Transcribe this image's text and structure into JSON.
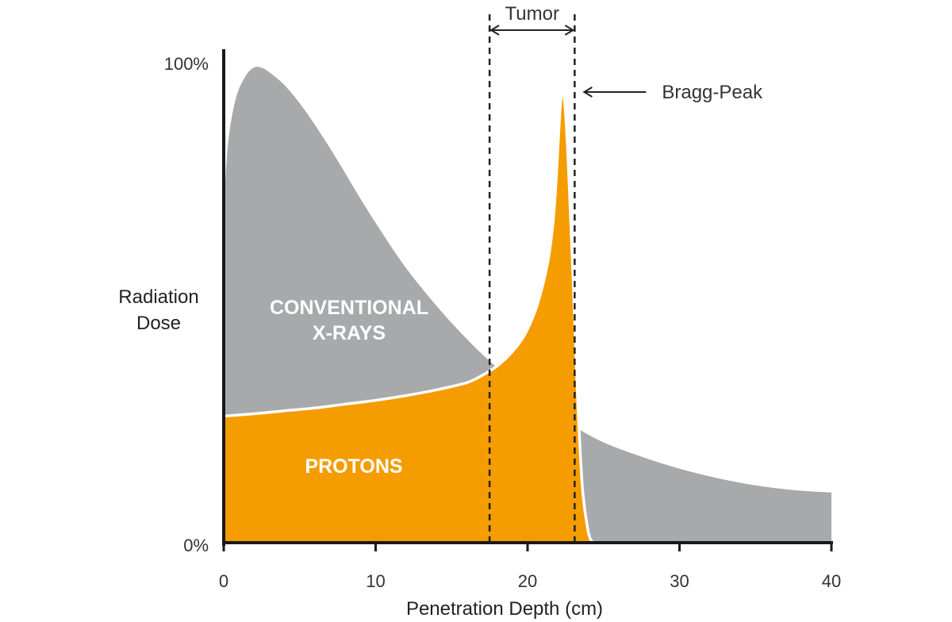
{
  "chart_data": {
    "type": "area",
    "xlabel": "Penetration Depth (cm)",
    "ylabel_lines": [
      "Radiation",
      "Dose"
    ],
    "xlim": [
      0,
      40
    ],
    "ylim": [
      0,
      100
    ],
    "x_ticks": [
      0,
      10,
      20,
      30,
      40
    ],
    "x_tick_labels": [
      "0",
      "10",
      "20",
      "30",
      "40"
    ],
    "y_tick_labels": [
      "0%",
      "100%"
    ],
    "grid": false,
    "series": [
      {
        "name": "CONVENTIONAL X-RAYS",
        "label_lines": [
          "CONVENTIONAL",
          "X-RAYS"
        ],
        "color": "#a7a9aa",
        "x": [
          0,
          0.3,
          0.8,
          1.4,
          2.0,
          2.6,
          3.2,
          4.0,
          5.0,
          6.0,
          7.5,
          9.0,
          10.5,
          12.0,
          13.5,
          15.0,
          17.0,
          19.0,
          21.0,
          23.0,
          25.0,
          27.5,
          30.0,
          32.5,
          35.0,
          37.5,
          40.0
        ],
        "y": [
          70,
          84,
          93,
          97.5,
          99.5,
          99.3,
          98,
          95.8,
          92,
          87.5,
          80,
          72,
          64.5,
          57.5,
          51.5,
          46,
          39.5,
          34,
          29,
          24.5,
          21,
          18,
          15.5,
          13.5,
          12,
          11,
          10.5
        ]
      },
      {
        "name": "PROTONS",
        "label_lines": [
          "PROTONS"
        ],
        "color": "#f59c00",
        "x": [
          0,
          2,
          4,
          6,
          8,
          10,
          12,
          14,
          16,
          17,
          18,
          19,
          19.8,
          20.5,
          21.0,
          21.4,
          21.7,
          21.9,
          22.05,
          22.2,
          22.35,
          22.5,
          22.7,
          23.0,
          23.3,
          23.6,
          23.9,
          24.1,
          24.3
        ],
        "y": [
          26.5,
          27,
          27.6,
          28.2,
          29,
          29.8,
          30.8,
          32,
          33.5,
          35,
          37,
          40,
          43.5,
          48.5,
          54,
          60,
          68,
          77,
          86,
          93,
          94,
          90,
          78,
          55,
          30,
          12,
          4,
          1,
          0
        ]
      }
    ],
    "annotations": {
      "tumor_label": "Tumor",
      "tumor_range": [
        17.5,
        23.1
      ],
      "peak_label": "Bragg-Peak",
      "peak_y": 94
    }
  }
}
